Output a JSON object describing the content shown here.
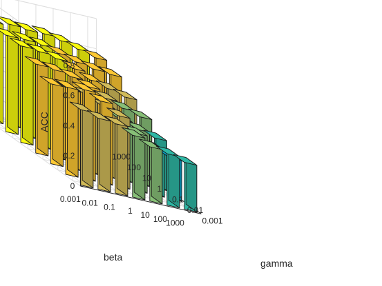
{
  "chart_data": {
    "type": "bar",
    "subtype": "3d-bar",
    "title": "",
    "xlabel": "gamma",
    "ylabel": "beta",
    "zlabel": "ACC",
    "x_categories": [
      "0.001",
      "0.01",
      "0.1",
      "1",
      "10",
      "100",
      "1000"
    ],
    "y_categories": [
      "0.001",
      "0.01",
      "0.1",
      "1",
      "10",
      "100",
      "1000"
    ],
    "zlim": [
      0,
      0.8
    ],
    "zticks": [
      "0",
      "0.2",
      "0.4",
      "0.6",
      "0.8"
    ],
    "grid": true,
    "colormap": [
      "#352a87",
      "#0f5cdd",
      "#1481d6",
      "#06a4ca",
      "#2eb7a4",
      "#87bf77",
      "#d1bb59",
      "#fec832",
      "#f9fb0e"
    ],
    "values": [
      [
        0.5,
        0.58,
        0.53,
        0.59,
        0.64,
        0.64,
        0.66
      ],
      [
        0.47,
        0.59,
        0.52,
        0.58,
        0.63,
        0.64,
        0.67
      ],
      [
        0.46,
        0.54,
        0.51,
        0.56,
        0.61,
        0.63,
        0.66
      ],
      [
        0.41,
        0.47,
        0.46,
        0.52,
        0.57,
        0.6,
        0.66
      ],
      [
        0.36,
        0.38,
        0.4,
        0.47,
        0.52,
        0.57,
        0.64
      ],
      [
        0.34,
        0.31,
        0.36,
        0.43,
        0.49,
        0.55,
        0.61
      ],
      [
        0.31,
        0.27,
        0.33,
        0.4,
        0.46,
        0.54,
        0.58
      ]
    ]
  }
}
